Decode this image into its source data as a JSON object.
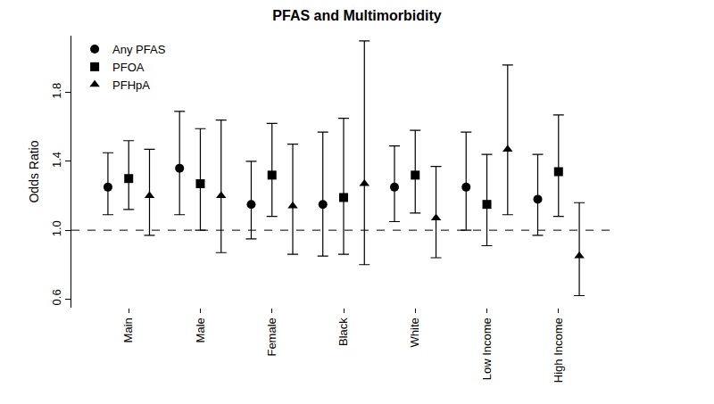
{
  "chart_data": {
    "type": "errorbar",
    "title": "PFAS and Multimorbidity",
    "y_label": "Odds Ratio",
    "categories": [
      "Main",
      "Male",
      "Female",
      "Black",
      "White",
      "Low Income",
      "High Income"
    ],
    "series": [
      {
        "name": "Any PFAS",
        "color": "#000000",
        "marker": "circle",
        "values": [
          1.25,
          1.36,
          1.15,
          1.15,
          1.25,
          1.25,
          1.18
        ],
        "lower": [
          1.09,
          1.09,
          0.95,
          0.85,
          1.05,
          1.0,
          0.97
        ],
        "upper": [
          1.45,
          1.69,
          1.4,
          1.57,
          1.49,
          1.57,
          1.44
        ]
      },
      {
        "name": "PFOA",
        "color": "#000000",
        "marker": "square",
        "values": [
          1.3,
          1.27,
          1.32,
          1.19,
          1.32,
          1.15,
          1.34
        ],
        "lower": [
          1.12,
          1.0,
          1.08,
          0.86,
          1.1,
          0.91,
          1.08
        ],
        "upper": [
          1.52,
          1.59,
          1.62,
          1.65,
          1.58,
          1.44,
          1.67
        ]
      },
      {
        "name": "PFHpA",
        "color": "#000000",
        "marker": "triangle-up",
        "values": [
          1.2,
          1.2,
          1.14,
          1.27,
          1.07,
          1.47,
          0.85
        ],
        "lower": [
          0.97,
          0.87,
          0.86,
          0.8,
          0.84,
          1.09,
          0.62
        ],
        "upper": [
          1.47,
          1.64,
          1.5,
          2.1,
          1.37,
          1.96,
          1.16
        ]
      }
    ],
    "ylim": [
      0.55,
      2.13
    ],
    "yticks": [
      0.6,
      {
        "value": 1,
        "label": "1.0"
      },
      1.4,
      1.8
    ],
    "reference_line": {
      "value": 1,
      "line_style": "dash"
    },
    "legend": "top-left",
    "grid": false
  }
}
